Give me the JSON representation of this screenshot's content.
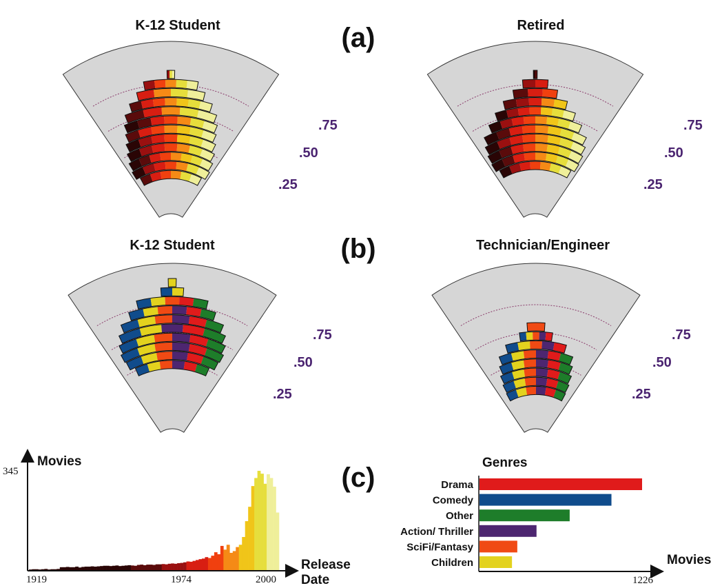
{
  "panel_labels": {
    "a": "(a)",
    "b": "(b)",
    "c": "(c)"
  },
  "colors": {
    "fan_bg": "#d6d6d6",
    "release_ramp": [
      "#2a0505",
      "#5a0b0b",
      "#9a1010",
      "#d81e12",
      "#f0400f",
      "#f58a16",
      "#f0c519",
      "#e6de3c",
      "#efef9a"
    ],
    "guide": "#8a3a6a",
    "tick_text": "#4a2370"
  },
  "chart_data": [
    {
      "type": "area",
      "panel": "(a)",
      "title": "K-12 Student",
      "encoding": "color = movie release date",
      "radial_ticks": [
        ".75",
        ".50",
        ".25"
      ],
      "rings": [
        {
          "w": 0.02,
          "c": [
            2,
            7,
            8
          ]
        },
        {
          "w": 0.15,
          "c": [
            2,
            4,
            5,
            7,
            8
          ]
        },
        {
          "w": 0.2,
          "c": [
            3,
            5,
            7,
            8
          ]
        },
        {
          "w": 0.26,
          "c": [
            1,
            3,
            4,
            5,
            6,
            7,
            8
          ]
        },
        {
          "w": 0.31,
          "c": [
            1,
            3,
            5,
            7,
            8
          ]
        },
        {
          "w": 0.34,
          "c": [
            0,
            1,
            3,
            4,
            5,
            7,
            8
          ]
        },
        {
          "w": 0.36,
          "c": [
            1,
            3,
            4,
            5,
            6,
            7,
            8
          ]
        },
        {
          "w": 0.39,
          "c": [
            0,
            2,
            3,
            4,
            6,
            7,
            8
          ]
        },
        {
          "w": 0.42,
          "c": [
            0,
            2,
            3,
            4,
            5,
            7,
            8
          ]
        },
        {
          "w": 0.45,
          "c": [
            0,
            1,
            3,
            4,
            5,
            6,
            7,
            8
          ]
        },
        {
          "w": 0.47,
          "c": [
            0,
            2,
            3,
            4,
            5,
            7,
            8
          ]
        },
        {
          "w": 0.42,
          "c": [
            1,
            3,
            4,
            5,
            7,
            8
          ]
        }
      ]
    },
    {
      "type": "area",
      "panel": "(a)",
      "title": "Retired",
      "encoding": "color = movie release date",
      "radial_ticks": [
        ".75",
        ".50",
        ".25"
      ],
      "rings": [
        {
          "w": 0.01,
          "c": [
            0,
            1
          ]
        },
        {
          "w": 0.07,
          "c": [
            2,
            3
          ]
        },
        {
          "w": 0.13,
          "c": [
            1,
            3,
            4
          ]
        },
        {
          "w": 0.2,
          "c": [
            1,
            2,
            3,
            5,
            6
          ]
        },
        {
          "w": 0.27,
          "c": [
            0,
            2,
            3,
            4,
            6,
            7,
            8
          ]
        },
        {
          "w": 0.34,
          "c": [
            0,
            2,
            3,
            4,
            5,
            6,
            7,
            8
          ]
        },
        {
          "w": 0.41,
          "c": [
            0,
            1,
            3,
            4,
            5,
            6,
            7,
            8
          ]
        },
        {
          "w": 0.44,
          "c": [
            0,
            2,
            3,
            4,
            5,
            6,
            7,
            8
          ]
        },
        {
          "w": 0.46,
          "c": [
            0,
            1,
            3,
            4,
            5,
            6,
            7,
            8
          ]
        },
        {
          "w": 0.47,
          "c": [
            0,
            1,
            3,
            4,
            5,
            6,
            7,
            8
          ]
        },
        {
          "w": 0.43,
          "c": [
            0,
            2,
            3,
            4,
            5,
            7,
            8
          ]
        }
      ]
    },
    {
      "type": "area",
      "panel": "(b)",
      "title": "K-12 Student",
      "encoding": "color = genre",
      "radial_ticks": [
        ".75",
        ".50",
        ".25"
      ],
      "rings": [
        {
          "w": 0.02,
          "c": [
            5
          ]
        },
        {
          "w": 0.06,
          "c": [
            1,
            5
          ]
        },
        {
          "w": 0.2,
          "c": [
            1,
            5,
            4,
            0,
            2
          ]
        },
        {
          "w": 0.26,
          "c": [
            1,
            5,
            4,
            3,
            0,
            2
          ]
        },
        {
          "w": 0.33,
          "c": [
            1,
            5,
            4,
            3,
            0,
            2
          ]
        },
        {
          "w": 0.37,
          "c": [
            1,
            5,
            3,
            0,
            2
          ]
        },
        {
          "w": 0.4,
          "c": [
            1,
            5,
            4,
            3,
            0,
            2
          ]
        },
        {
          "w": 0.42,
          "c": [
            1,
            5,
            4,
            3,
            0,
            2
          ]
        },
        {
          "w": 0.41,
          "c": [
            1,
            5,
            4,
            3,
            0,
            2
          ]
        },
        {
          "w": 0.36,
          "c": [
            1,
            5,
            4,
            3,
            0,
            2
          ]
        }
      ]
    },
    {
      "type": "area",
      "panel": "(b)",
      "title": "Technician/Engineer",
      "encoding": "color = genre",
      "radial_ticks": [
        ".75",
        ".50",
        ".25"
      ],
      "rings": [
        {
          "w": 0.06,
          "c": [
            4
          ]
        },
        {
          "w": 0.12,
          "c": [
            1,
            5,
            4,
            3,
            0
          ]
        },
        {
          "w": 0.24,
          "c": [
            1,
            5,
            4,
            3,
            0
          ]
        },
        {
          "w": 0.32,
          "c": [
            1,
            5,
            4,
            3,
            0,
            2
          ]
        },
        {
          "w": 0.35,
          "c": [
            1,
            5,
            4,
            3,
            0,
            2
          ]
        },
        {
          "w": 0.38,
          "c": [
            1,
            5,
            4,
            3,
            0,
            2
          ]
        },
        {
          "w": 0.4,
          "c": [
            1,
            5,
            4,
            3,
            0,
            2
          ]
        },
        {
          "w": 0.41,
          "c": [
            1,
            5,
            4,
            3,
            0,
            2
          ]
        }
      ]
    },
    {
      "type": "bar",
      "panel": "(c)",
      "title": "",
      "ylabel": "Movies",
      "xlabel": "Release Date",
      "y_tick": "345",
      "x_ticks": [
        "1919",
        "1974",
        "2000"
      ],
      "ylim": [
        0,
        345
      ],
      "xlim": [
        1919,
        2000
      ],
      "values": [
        2,
        3,
        3,
        2,
        3,
        4,
        2,
        3,
        3,
        4,
        10,
        10,
        11,
        10,
        10,
        12,
        9,
        11,
        12,
        12,
        13,
        12,
        13,
        14,
        15,
        15,
        14,
        15,
        16,
        14,
        15,
        16,
        17,
        16,
        15,
        18,
        19,
        17,
        19,
        19,
        18,
        20,
        20,
        21,
        20,
        22,
        23,
        22,
        24,
        25,
        27,
        30,
        29,
        32,
        35,
        38,
        40,
        45,
        42,
        50,
        62,
        55,
        84,
        71,
        88,
        60,
        66,
        80,
        88,
        115,
        170,
        220,
        292,
        320,
        345,
        335,
        300,
        333,
        320,
        290,
        200
      ]
    },
    {
      "type": "bar",
      "panel": "(c)",
      "title": "Genres",
      "xlabel": "Movies",
      "x_tick": "1226",
      "xlim": [
        0,
        1226
      ],
      "categories": [
        "Drama",
        "Comedy",
        "Other",
        "Action/ Thriller",
        "SciFi/Fantasy",
        "Children"
      ],
      "values": [
        1226,
        995,
        680,
        430,
        285,
        245
      ],
      "bar_colors": [
        "#e01b1b",
        "#104c8c",
        "#1e7d2a",
        "#4d2670",
        "#f04a14",
        "#e3d21e"
      ]
    }
  ]
}
